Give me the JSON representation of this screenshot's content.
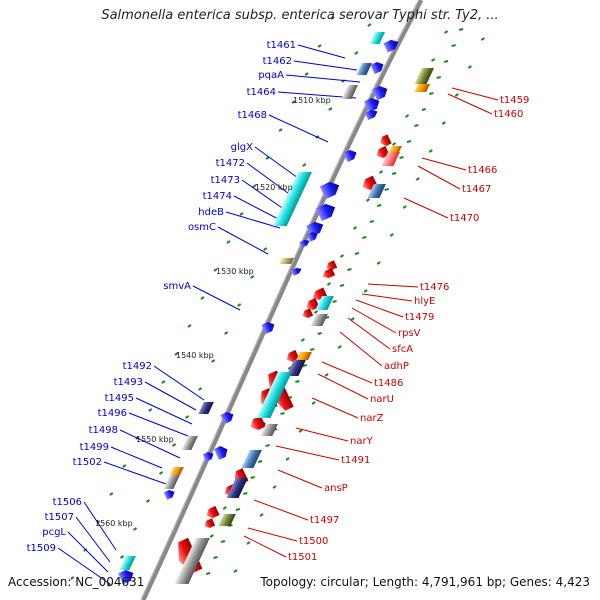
{
  "title": "Salmonella enterica subsp. enterica serovar Typhi str. Ty2, ...",
  "footer": {
    "accession": "Accession: NC_004631",
    "summary": "Topology: circular; Length: 4,791,961 bp; Genes: 4,423"
  },
  "colors": {
    "forward_gene": "#1010e0",
    "reverse_gene": "#ee1111",
    "label_forward": "#0000cc",
    "label_reverse": "#cc0000",
    "backbone": "#888888",
    "tick": "#1a8a1a",
    "rna": "#22dddd"
  },
  "scale_labels": [
    "1510 kbp",
    "1520 kbp",
    "1530 kbp",
    "1540 kbp",
    "1550 kbp",
    "1560 kbp"
  ],
  "forward_labels": [
    "t1461",
    "t1462",
    "pqaA",
    "t1464",
    "t1468",
    "glgX",
    "t1472",
    "t1473",
    "t1474",
    "hdeB",
    "osmC",
    "smvA",
    "t1492",
    "t1493",
    "t1495",
    "t1496",
    "t1498",
    "t1499",
    "t1502",
    "t1506",
    "t1507",
    "pcgL",
    "t1509"
  ],
  "reverse_labels": [
    "t1459",
    "t1460",
    "t1466",
    "t1467",
    "t1470",
    "t1476",
    "hlyE",
    "t1479",
    "rpsV",
    "sfcA",
    "adhP",
    "t1486",
    "narU",
    "narZ",
    "narY",
    "t1491",
    "ansP",
    "t1497",
    "t1500",
    "t1501"
  ]
}
